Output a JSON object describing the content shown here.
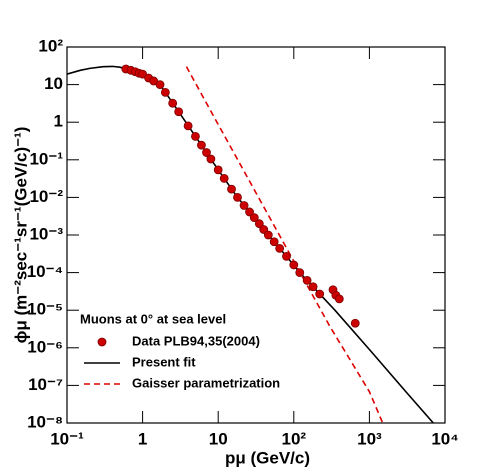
{
  "chart_data": {
    "type": "line",
    "xlabel": "pμ (GeV/c)",
    "ylabel": "ϕμ (m⁻²sec⁻¹sr⁻¹(GeV/c)⁻¹)",
    "xscale": "log",
    "yscale": "log",
    "xlim": [
      0.1,
      10000
    ],
    "ylim": [
      1e-08,
      100
    ],
    "xticks": [
      {
        "value": 0.1,
        "label": "10⁻¹"
      },
      1,
      10,
      {
        "value": 100,
        "label": "10²"
      },
      {
        "value": 1000,
        "label": "10³"
      },
      {
        "value": 10000,
        "label": "10⁴"
      }
    ],
    "yticks": [
      {
        "value": 1e-08,
        "label": "10⁻⁸"
      },
      {
        "value": 1e-07,
        "label": "10⁻⁷"
      },
      {
        "value": 1e-06,
        "label": "10⁻⁶"
      },
      {
        "value": 1e-05,
        "label": "10⁻⁵"
      },
      {
        "value": 0.0001,
        "label": "10⁻⁴"
      },
      {
        "value": 0.001,
        "label": "10⁻³"
      },
      {
        "value": 0.01,
        "label": "10⁻²"
      },
      {
        "value": 0.1,
        "label": "10⁻¹"
      },
      1,
      10,
      {
        "value": 100,
        "label": "10²"
      }
    ],
    "legend_title": "Muons at 0° at sea level",
    "legend": "bottom-left",
    "series": [
      {
        "name": "Data PLB94,35(2004)",
        "kind": "markers",
        "color": "#cc0000",
        "x": [
          0.6,
          0.7,
          0.8,
          0.9,
          1,
          1.2,
          1.4,
          1.7,
          2,
          2.5,
          3,
          4,
          5,
          6,
          7,
          8,
          10,
          12,
          15,
          18,
          22,
          26,
          30,
          35,
          40,
          46,
          55,
          65,
          80,
          100,
          120,
          150,
          180,
          220,
          330,
          360,
          400,
          650
        ],
        "values": [
          26,
          24,
          22,
          20,
          19,
          15,
          12.5,
          10,
          6.2,
          3.2,
          1.9,
          0.8,
          0.42,
          0.245,
          0.156,
          0.105,
          0.054,
          0.032,
          0.0166,
          0.01,
          0.0061,
          0.0041,
          0.0029,
          0.002,
          0.0014,
          0.001,
          0.00066,
          0.00044,
          0.00027,
          0.00016,
          0.0001,
          6.2e-05,
          4.2e-05,
          2.7e-05,
          3.5e-05,
          2.5e-05,
          2e-05,
          4.5e-06
        ]
      },
      {
        "name": "Present fit",
        "kind": "solid",
        "color": "#000000",
        "x": [
          0.1,
          0.15,
          0.2,
          0.3,
          0.4,
          0.5,
          0.6,
          0.8,
          1,
          1.7,
          3,
          5,
          10,
          18,
          30,
          46,
          80,
          120,
          220,
          350,
          1000,
          3000,
          7000
        ],
        "values": [
          19,
          24,
          27,
          30,
          30.5,
          29,
          26.3,
          22,
          18.6,
          10,
          1.9,
          0.42,
          0.054,
          0.01,
          0.0029,
          0.001,
          0.00027,
          0.0001,
          2.7e-05,
          1e-05,
          9e-07,
          7e-08,
          1e-08
        ]
      },
      {
        "name": "Gaisser parametrization",
        "kind": "dashed",
        "color": "#dd0000",
        "x": [
          3.8,
          10,
          30,
          100,
          300,
          1000,
          1500
        ],
        "values": [
          30,
          0.87,
          0.016,
          0.0002,
          3.7e-06,
          6.8e-08,
          1e-08
        ]
      }
    ]
  }
}
